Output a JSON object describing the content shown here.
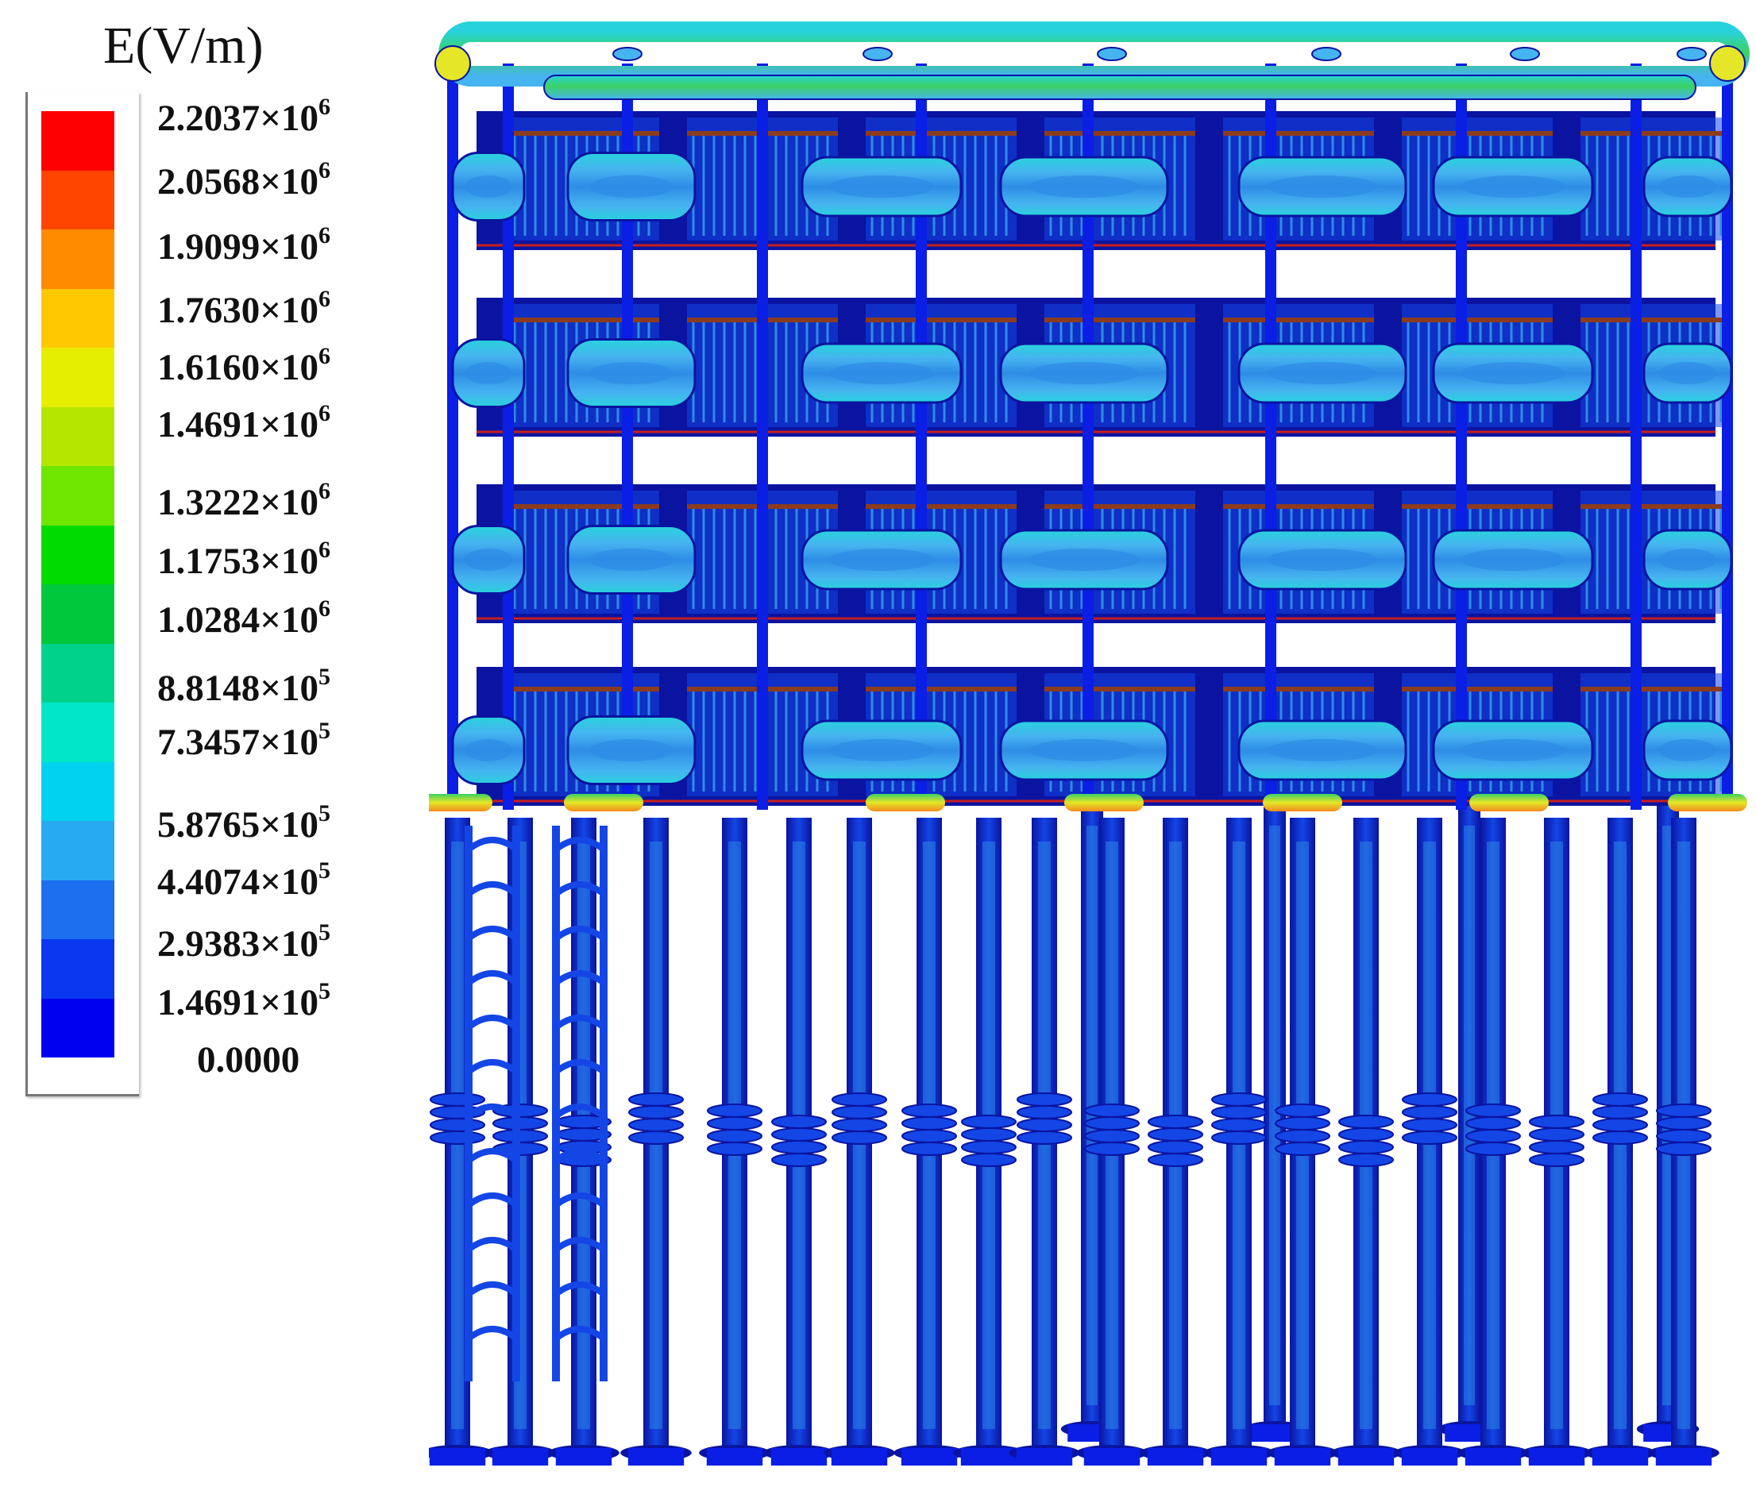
{
  "legend": {
    "title": "E(V/m)",
    "ticks": [
      {
        "mantissa": "2.2037×10",
        "exp": "6"
      },
      {
        "mantissa": "2.0568×10",
        "exp": "6"
      },
      {
        "mantissa": "1.9099×10",
        "exp": "6"
      },
      {
        "mantissa": "1.7630×10",
        "exp": "6"
      },
      {
        "mantissa": "1.6160×10",
        "exp": "6"
      },
      {
        "mantissa": "1.4691×10",
        "exp": "6"
      },
      {
        "mantissa": "1.3222×10",
        "exp": "6"
      },
      {
        "mantissa": "1.1753×10",
        "exp": "6"
      },
      {
        "mantissa": "1.0284×10",
        "exp": "6"
      },
      {
        "mantissa": "8.8148×10",
        "exp": "5"
      },
      {
        "mantissa": "7.3457×10",
        "exp": "5"
      },
      {
        "mantissa": "5.8765×10",
        "exp": "5"
      },
      {
        "mantissa": "4.4074×10",
        "exp": "5"
      },
      {
        "mantissa": "2.9383×10",
        "exp": "5"
      },
      {
        "mantissa": "1.4691×10",
        "exp": "5"
      },
      {
        "mantissa": "0.0000",
        "exp": ""
      }
    ],
    "colors": [
      "#ff0000",
      "#ff4500",
      "#ff8c00",
      "#ffc800",
      "#e6ee00",
      "#b4e600",
      "#6ee600",
      "#00dc00",
      "#00c83c",
      "#00d28c",
      "#00e6c8",
      "#00d2f0",
      "#28aaf0",
      "#1e6ef0",
      "#0a37f0",
      "#0000f0"
    ]
  },
  "scene": {
    "palette": {
      "deep": "#0a1ee6",
      "blue": "#1446e6",
      "mid": "#2e8ce6",
      "light": "#46b4f0",
      "cyan": "#28d2dc",
      "green": "#3cd264",
      "yellow": "#e6e628",
      "orange": "#f08c1e",
      "navy": "#0a14a0",
      "brown": "#8c3c1e",
      "red": "#c81e1e"
    },
    "tiers": 4,
    "shield_columns": 7
  }
}
